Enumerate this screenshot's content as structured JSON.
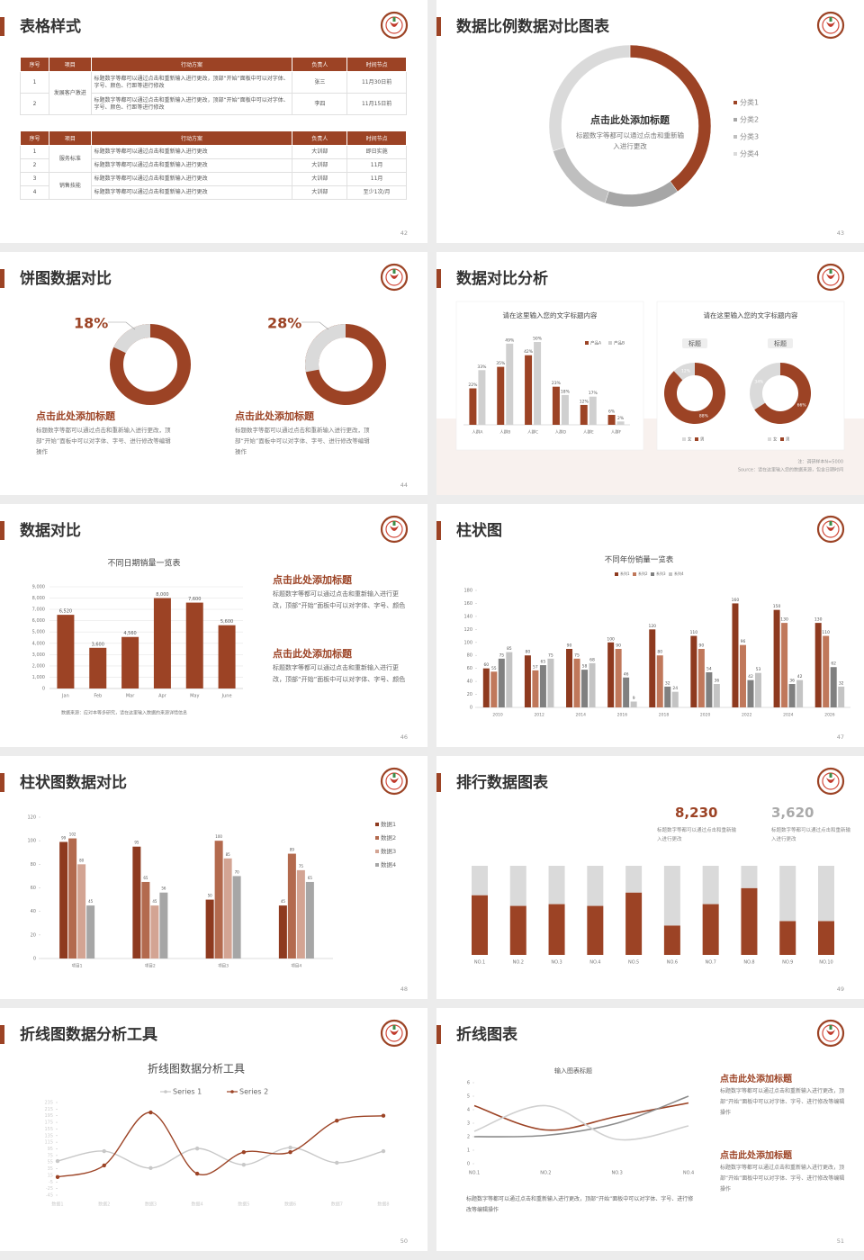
{
  "slides": [
    {
      "title": "表格样式",
      "page": 42,
      "tables": [
        {
          "header": [
            "序号",
            "项目",
            "行动方案",
            "负责人",
            "时间节点"
          ],
          "groups": [
            {
              "project": "发展客户激进",
              "rows": [
                [
                  "1",
                  "标题数字等都可以通过点击和重新输入进行更改，顶部“开始”面板中可以对字体、字号、颜色、行距等进行修改",
                  "张三",
                  "11月30日前"
                ],
                [
                  "2",
                  "标题数字等都可以通过点击和重新输入进行更改，顶部“开始”面板中可以对字体、字号、颜色、行距等进行修改",
                  "李四",
                  "11月15日前"
                ]
              ]
            }
          ]
        },
        {
          "header": [
            "序号",
            "项目",
            "行动方案",
            "负责人",
            "时间节点"
          ],
          "groups": [
            {
              "project": "服务标准",
              "rows": [
                [
                  "1",
                  "标题数字等都可以通过点击和重新输入进行更改",
                  "大训部",
                  "即日实施"
                ],
                [
                  "2",
                  "标题数字等都可以通过点击和重新输入进行更改",
                  "大训部",
                  "11月"
                ]
              ]
            },
            {
              "project": "销售技能",
              "rows": [
                [
                  "3",
                  "标题数字等都可以通过点击和重新输入进行更改",
                  "大训部",
                  "11月"
                ],
                [
                  "4",
                  "标题数字等都可以通过点击和重新输入进行更改",
                  "大训部",
                  "至少1次/月"
                ]
              ]
            }
          ]
        }
      ]
    },
    {
      "title": "数据比例数据对比图表",
      "page": 43,
      "chart": {
        "type": "donut",
        "heading": "点击此处添加标题",
        "text": "标题数字等都可以通过点击和重新输入进行更改",
        "categories": [
          "分类1",
          "分类2",
          "分类3",
          "分类4"
        ],
        "values": [
          40,
          15,
          15,
          30
        ],
        "colors": [
          "#9c4325",
          "#a6a6a6",
          "#bfbfbf",
          "#dadada"
        ]
      }
    },
    {
      "title": "饼图数据对比",
      "page": 44,
      "colors": [
        "#dadada",
        "#9c4325"
      ],
      "items": [
        {
          "value": 18,
          "value_label": "18%",
          "heading": "点击此处添加标题",
          "text": "标题数字等都可以通过点击和重新输入进行更改，顶部“开始”面板中可以对字体、字号、进行修改等编辑操作"
        },
        {
          "value": 28,
          "value_label": "28%",
          "heading": "点击此处添加标题",
          "text": "标题数字等都可以通过点击和重新输入进行更改，顶部“开始”面板中可以对字体、字号、进行修改等编辑操作"
        }
      ]
    },
    {
      "title": "数据对比分析",
      "page": 45,
      "bar_chart": {
        "type": "bar",
        "title": "请在这里输入您的文字标题内容",
        "categories": [
          "人群A",
          "人群B",
          "人群C",
          "人群D",
          "人群E",
          "人群F"
        ],
        "series": [
          {
            "name": "产品A",
            "color": "#9c4325",
            "values": [
              22,
              35,
              42,
              23,
              12,
              6
            ],
            "value_labels": [
              "22%",
              "35%",
              "42%",
              "23%",
              "12%",
              "6%"
            ]
          },
          {
            "name": "产品B",
            "color": "#d0d0d0",
            "values": [
              33,
              49,
              50,
              18,
              17,
              2
            ],
            "value_labels": [
              "33%",
              "49%",
              "50%",
              "18%",
              "17%",
              "2%"
            ]
          }
        ]
      },
      "donut_chart": {
        "type": "donut",
        "title": "请在这里输入您的文字标题内容",
        "categories": [
          "女",
          "男"
        ],
        "colors": [
          "#dadada",
          "#9c4325"
        ],
        "items": [
          {
            "label": "标题",
            "values": [
              12,
              88
            ],
            "value_labels": [
              "12%",
              "88%"
            ]
          },
          {
            "label": "标题",
            "values": [
              34,
              66
            ],
            "value_labels": [
              "34%",
              "66%"
            ]
          }
        ]
      },
      "note": "注：调研样本N=5000",
      "source": "Source：请在这里输入您的数据来源，包含日期时间"
    },
    {
      "title": "数据对比",
      "page": 46,
      "chart": {
        "type": "bar",
        "title": "不同日期销量一览表",
        "categories": [
          "Jan",
          "Feb",
          "Mar",
          "Apr",
          "May",
          "June"
        ],
        "values": [
          6520,
          3600,
          4560,
          8000,
          7600,
          5600
        ],
        "value_labels": [
          "6,520",
          "3,600",
          "4,560",
          "8,000",
          "7,600",
          "5,600"
        ],
        "color": "#9c4325",
        "ylim": [
          0,
          9000
        ],
        "yticks": [
          0,
          {
            "value": 1000,
            "label": "1,000"
          },
          {
            "value": 2000,
            "label": "2,000"
          },
          {
            "value": 3000,
            "label": "3,000"
          },
          {
            "value": 4000,
            "label": "4,000"
          },
          {
            "value": 5000,
            "label": "5,000"
          },
          {
            "value": 6000,
            "label": "6,000"
          },
          {
            "value": 7000,
            "label": "7,000"
          },
          {
            "value": 8000,
            "label": "8,000"
          },
          {
            "value": 9000,
            "label": "9,000"
          }
        ],
        "grid": true,
        "note": "数据来源：应对本等多研究，请在这里输入数据的来源详情信息"
      },
      "blocks": [
        {
          "heading": "点击此处添加标题",
          "text": "标题数字等都可以通过点击和重新输入进行更改，顶部“开始”面板中可以对字体、字号、颜色"
        },
        {
          "heading": "点击此处添加标题",
          "text": "标题数字等都可以通过点击和重新输入进行更改，顶部“开始”面板中可以对字体、字号、颜色"
        }
      ]
    },
    {
      "title": "柱状图",
      "page": 47,
      "chart": {
        "type": "bar",
        "title": "不同年份销量一览表",
        "categories": [
          "2010",
          "2012",
          "2014",
          "2016",
          "2018",
          "2020",
          "2022",
          "2024",
          "2026"
        ],
        "series": [
          {
            "name": "系列1",
            "color": "#8e3a1f",
            "values": [
              60,
              80,
              90,
              100,
              120,
              110,
              160,
              150,
              130
            ]
          },
          {
            "name": "系列2",
            "color": "#c0785b",
            "values": [
              55,
              57,
              75,
              90,
              80,
              90,
              96,
              130,
              110
            ]
          },
          {
            "name": "系列3",
            "color": "#808080",
            "values": [
              75,
              65,
              58,
              46,
              32,
              54,
              42,
              36,
              62
            ]
          },
          {
            "name": "系列4",
            "color": "#c4c4c4",
            "values": [
              85,
              75,
              68,
              9,
              24,
              36,
              53,
              42,
              32
            ]
          }
        ],
        "ylim": [
          0,
          180
        ],
        "yticks": [
          0,
          20,
          40,
          60,
          80,
          100,
          120,
          140,
          160,
          180
        ]
      }
    },
    {
      "title": "柱状图数据对比",
      "page": 48,
      "chart": {
        "type": "bar",
        "categories": [
          "项目1",
          "项目2",
          "项目3",
          "项目4"
        ],
        "series": [
          {
            "name": "数据1",
            "color": "#8e3a1f",
            "values": [
              99,
              95,
              50,
              45
            ]
          },
          {
            "name": "数据2",
            "color": "#b36a4e",
            "values": [
              102,
              65,
              100,
              89
            ]
          },
          {
            "name": "数据3",
            "color": "#d3a493",
            "values": [
              80,
              45,
              85,
              75
            ]
          },
          {
            "name": "数据4",
            "color": "#a6a6a6",
            "values": [
              45,
              56,
              70,
              65
            ]
          }
        ],
        "ylim": [
          0,
          120
        ],
        "yticks": [
          0,
          20,
          40,
          60,
          80,
          100,
          120
        ],
        "legend": "right"
      }
    },
    {
      "title": "排行数据图表",
      "page": 49,
      "stats": [
        {
          "value": "8,230",
          "text": "标题数字等都可以通过点击和重新输入进行更改"
        },
        {
          "value": "3,620",
          "text": "标题数字等都可以通过点击和重新输入进行更改"
        }
      ],
      "chart": {
        "type": "stacked_bar",
        "categories": [
          "NO.1",
          "NO.2",
          "NO.3",
          "NO.4",
          "NO.5",
          "NO.6",
          "NO.7",
          "NO.8",
          "NO.9",
          "NO.10"
        ],
        "series": [
          {
            "color": "#9c4325",
            "values": [
              67,
              55,
              57,
              55,
              70,
              33,
              57,
              75,
              38,
              38
            ]
          },
          {
            "color": "#dadada",
            "values": [
              33,
              45,
              43,
              45,
              30,
              67,
              43,
              25,
              62,
              62
            ]
          }
        ]
      }
    },
    {
      "title": "折线图数据分析工具",
      "page": 50,
      "chart": {
        "type": "line",
        "title": "折线图数据分析工具",
        "categories": [
          "数据1",
          "数据2",
          "数据3",
          "数据4",
          "数据5",
          "数据6",
          "数据7",
          "数据8"
        ],
        "series": [
          {
            "name": "Series 1",
            "color": "#c8c8c8",
            "values": [
              58,
              88,
              37,
              96,
              47,
              99,
              53,
              88
            ]
          },
          {
            "name": "Series 2",
            "color": "#9c4325",
            "values": [
              10,
              45,
              205,
              20,
              85,
              85,
              180,
              195
            ]
          }
        ],
        "ylim": [
          -45,
          235
        ],
        "yticks": [
          235,
          215,
          195,
          175,
          155,
          135,
          115,
          95,
          75,
          55,
          35,
          15,
          -5,
          -25,
          -45
        ],
        "smooth": true,
        "markers": true
      }
    },
    {
      "title": "折线图表",
      "page": 51,
      "chart": {
        "type": "line",
        "title": "输入图表标题",
        "categories": [
          "NO.1",
          "NO.2",
          "NO.3",
          "NO.4"
        ],
        "series": [
          {
            "color": "#9c4325",
            "values": [
              4.3,
              2.5,
              3.5,
              4.5
            ]
          },
          {
            "color": "#8c8c8c",
            "values": [
              2,
              2.1,
              3,
              5
            ]
          },
          {
            "color": "#d0d0d0",
            "values": [
              2.4,
              4.3,
              1.8,
              2.8
            ]
          }
        ],
        "ylim": [
          0,
          6
        ],
        "yticks": [
          0,
          1,
          2,
          3,
          4,
          5,
          6
        ],
        "smooth": true,
        "markers": false
      },
      "blocks": [
        {
          "heading": "点击此处添加标题",
          "text": "标题数字等都可以通过点击和重新输入进行更改，顶部“开始”面板中可以对字体、字号、进行修改等编辑操作"
        },
        {
          "heading": "点击此处添加标题",
          "text": "标题数字等都可以通过点击和重新输入进行更改，顶部“开始”面板中可以对字体、字号、进行修改等编辑操作"
        }
      ],
      "note": "标题数字等都可以通过点击和重新输入进行更改，顶部“开始”面板中可以对字体、字号、进行修改等编辑操作"
    }
  ]
}
